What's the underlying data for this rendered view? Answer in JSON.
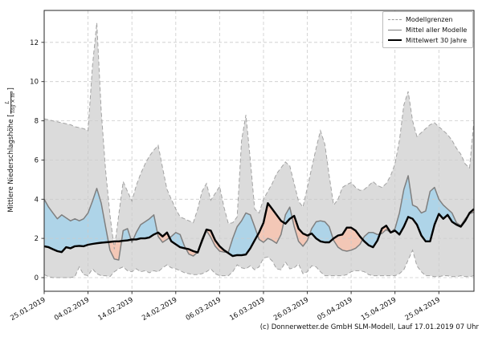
{
  "figure": {
    "copyright": "(c) Donnerwetter.de GmbH SLM-Modell, Lauf 17.01.2019 07 Uhr"
  },
  "axes": {
    "y_label_prefix": "Mittlere Niederschlagshöhe [",
    "y_unit_numerator": "L",
    "y_unit_denominator": "Tag × m²",
    "y_label_suffix": "]"
  },
  "chart_data": {
    "type": "line",
    "title": "",
    "xlabel": "",
    "ylabel": "Mittlere Niederschlagshöhe [L/(Tag × m²)]",
    "grid": true,
    "legend_position": "upper right",
    "ylim": [
      -0.7,
      13.63
    ],
    "y_ticks": [
      0,
      2,
      4,
      6,
      8,
      10,
      12
    ],
    "x_tick_days": [
      0,
      10,
      20,
      30,
      40,
      50,
      60,
      70,
      80,
      90
    ],
    "x_tick_labels": [
      "25.01.2019",
      "04.02.2019",
      "14.02.2019",
      "24.02.2019",
      "06.03.2019",
      "16.03.2019",
      "26.03.2019",
      "05.04.2019",
      "15.04.2019",
      "25.04.2019"
    ],
    "legend": [
      {
        "label": "Modellgrenzen",
        "style": "dashed-gray"
      },
      {
        "label": "Mittel aller Modelle",
        "style": "solid-gray"
      },
      {
        "label": "Mittelwert 30 Jahre",
        "style": "solid-black-thick"
      }
    ],
    "colors": {
      "range_fill": "#dbdbdb",
      "range_edge": "#a3a3a3",
      "above_fill": "#aed4e8",
      "below_fill": "#f3c7b6",
      "model_mean_line": "#7f7f7f",
      "mean30_line": "#000000",
      "grid": "#cbcbcb",
      "spine": "#262626",
      "text": "#111111"
    },
    "series": [
      {
        "name": "Modellgrenzen (obere Grenze)",
        "values": [
          8.1,
          8.05,
          8.0,
          7.95,
          7.9,
          7.85,
          7.8,
          7.7,
          7.65,
          7.6,
          7.5,
          10.8,
          13.0,
          8.5,
          5.5,
          3.2,
          1.45,
          3.2,
          4.9,
          4.4,
          3.9,
          4.7,
          5.3,
          5.8,
          6.2,
          6.5,
          6.75,
          5.6,
          4.5,
          4.0,
          3.5,
          3.1,
          3.0,
          2.9,
          2.8,
          3.5,
          4.4,
          4.8,
          3.95,
          4.3,
          4.65,
          3.6,
          2.75,
          2.8,
          3.1,
          7.0,
          8.3,
          6.0,
          3.5,
          3.3,
          4.0,
          4.4,
          4.8,
          5.3,
          5.6,
          5.9,
          5.7,
          4.8,
          3.9,
          3.6,
          4.6,
          5.6,
          6.6,
          7.5,
          6.8,
          5.2,
          3.7,
          4.0,
          4.6,
          4.75,
          4.85,
          4.6,
          4.45,
          4.5,
          4.7,
          4.9,
          4.7,
          4.6,
          4.8,
          5.2,
          5.8,
          7.0,
          8.8,
          9.5,
          8.0,
          7.2,
          7.4,
          7.6,
          7.8,
          7.9,
          7.7,
          7.5,
          7.3,
          7.0,
          6.6,
          6.3,
          5.8,
          5.6,
          8.0
        ]
      },
      {
        "name": "Modellgrenzen (untere Grenze)",
        "values": [
          0.15,
          0.05,
          0.0,
          0.0,
          0.0,
          0.0,
          0.0,
          0.05,
          0.55,
          0.15,
          0.1,
          0.45,
          0.2,
          0.1,
          0.1,
          0.05,
          0.3,
          0.45,
          0.55,
          0.35,
          0.3,
          0.45,
          0.3,
          0.35,
          0.25,
          0.35,
          0.3,
          0.5,
          0.65,
          0.5,
          0.45,
          0.35,
          0.25,
          0.2,
          0.15,
          0.15,
          0.2,
          0.3,
          0.45,
          0.2,
          0.1,
          0.1,
          0.1,
          0.3,
          0.65,
          0.5,
          0.45,
          0.6,
          0.4,
          0.55,
          1.0,
          1.05,
          0.85,
          0.45,
          0.4,
          0.8,
          0.45,
          0.5,
          0.7,
          0.2,
          0.3,
          0.6,
          0.55,
          0.3,
          0.1,
          0.1,
          0.1,
          0.1,
          0.1,
          0.15,
          0.3,
          0.35,
          0.35,
          0.3,
          0.15,
          0.1,
          0.1,
          0.1,
          0.1,
          0.1,
          0.1,
          0.2,
          0.4,
          0.9,
          1.4,
          0.6,
          0.3,
          0.1,
          0.1,
          0.05,
          0.05,
          0.1,
          0.1,
          0.05,
          0.05,
          0.1,
          0.05,
          0.05,
          0.1
        ]
      },
      {
        "name": "Mittel aller Modelle",
        "values": [
          4.0,
          3.6,
          3.3,
          3.0,
          3.2,
          3.05,
          2.9,
          3.0,
          2.9,
          3.0,
          3.3,
          3.9,
          4.55,
          3.8,
          2.6,
          1.4,
          0.95,
          0.9,
          2.4,
          2.5,
          1.8,
          2.3,
          2.7,
          2.85,
          3.0,
          3.2,
          2.1,
          1.8,
          1.95,
          2.1,
          2.3,
          2.2,
          1.6,
          1.2,
          1.1,
          1.3,
          1.8,
          2.4,
          2.05,
          1.6,
          1.35,
          1.3,
          1.3,
          2.0,
          2.6,
          2.9,
          3.3,
          3.2,
          2.6,
          1.95,
          1.8,
          2.0,
          1.9,
          1.75,
          2.2,
          3.2,
          3.6,
          2.6,
          1.85,
          1.6,
          1.9,
          2.5,
          2.85,
          2.9,
          2.85,
          2.6,
          1.9,
          1.55,
          1.4,
          1.35,
          1.4,
          1.5,
          1.7,
          2.1,
          2.3,
          2.3,
          2.2,
          2.25,
          2.45,
          2.3,
          2.5,
          3.3,
          4.5,
          5.2,
          3.7,
          3.6,
          3.3,
          3.4,
          4.4,
          4.6,
          4.0,
          3.7,
          3.5,
          3.3,
          2.8,
          2.65,
          3.0,
          3.25,
          3.35
        ]
      },
      {
        "name": "Mittelwert 30 Jahre",
        "values": [
          1.6,
          1.55,
          1.45,
          1.35,
          1.3,
          1.55,
          1.5,
          1.6,
          1.62,
          1.6,
          1.68,
          1.72,
          1.75,
          1.78,
          1.8,
          1.82,
          1.85,
          1.85,
          1.88,
          1.9,
          1.95,
          1.95,
          2.0,
          2.0,
          2.05,
          2.2,
          2.3,
          2.1,
          2.3,
          1.85,
          1.7,
          1.55,
          1.5,
          1.45,
          1.35,
          1.28,
          1.9,
          2.45,
          2.4,
          1.9,
          1.6,
          1.4,
          1.25,
          1.1,
          1.15,
          1.14,
          1.18,
          1.5,
          1.9,
          2.3,
          2.8,
          3.8,
          3.5,
          3.2,
          2.9,
          2.75,
          3.0,
          3.15,
          2.5,
          2.25,
          2.15,
          2.25,
          2.0,
          1.85,
          1.8,
          1.8,
          2.0,
          2.15,
          2.2,
          2.55,
          2.55,
          2.4,
          2.1,
          1.85,
          1.65,
          1.55,
          1.9,
          2.5,
          2.65,
          2.3,
          2.4,
          2.2,
          2.6,
          3.1,
          3.0,
          2.7,
          2.15,
          1.85,
          1.85,
          2.7,
          3.25,
          3.0,
          3.2,
          2.85,
          2.7,
          2.6,
          2.9,
          3.3,
          3.5
        ]
      }
    ]
  }
}
